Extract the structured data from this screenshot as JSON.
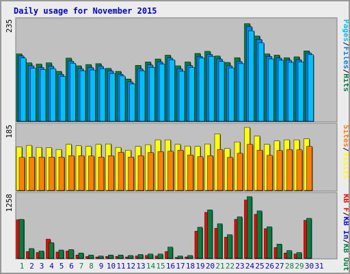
{
  "title": "Daily usage for November 2015",
  "colors": {
    "hits": "#008040",
    "files": "#0080ff",
    "pages": "#00c0ff",
    "visits": "#ffff00",
    "sites": "#ff8000",
    "kb_f": "#ff0000",
    "kb_in": "#0000ff",
    "kb_out": "#008040",
    "panel_bg": "#c0c0c0",
    "weekend_label": "#008040",
    "weekday_label": "#0000cc"
  },
  "chart_data": [
    {
      "type": "bar",
      "name": "pages-files-hits",
      "x": [
        1,
        2,
        3,
        4,
        5,
        6,
        7,
        8,
        9,
        10,
        11,
        12,
        13,
        14,
        15,
        16,
        17,
        18,
        19,
        20,
        21,
        22,
        23,
        24,
        25,
        26,
        27,
        28,
        29,
        30
      ],
      "ymax_label": "235",
      "ylim": [
        0,
        235
      ],
      "axis_legend": [
        "Pages",
        "/",
        "Files",
        "/",
        "Hits"
      ],
      "series": [
        {
          "name": "Hits",
          "values": [
            160,
            139,
            136,
            139,
            119,
            150,
            132,
            135,
            137,
            126,
            119,
            101,
            133,
            141,
            148,
            157,
            132,
            141,
            161,
            166,
            155,
            140,
            151,
            231,
            202,
            160,
            157,
            151,
            153,
            167
          ]
        },
        {
          "name": "Files",
          "values": [
            155,
            132,
            128,
            131,
            112,
            143,
            125,
            128,
            131,
            120,
            112,
            94,
            125,
            134,
            141,
            150,
            125,
            133,
            154,
            159,
            148,
            132,
            142,
            224,
            194,
            154,
            150,
            145,
            146,
            162
          ]
        },
        {
          "name": "Pages",
          "values": [
            150,
            126,
            123,
            125,
            107,
            138,
            120,
            122,
            125,
            114,
            108,
            89,
            120,
            128,
            136,
            146,
            119,
            128,
            150,
            154,
            142,
            127,
            137,
            214,
            186,
            148,
            145,
            140,
            141,
            158
          ]
        }
      ]
    },
    {
      "type": "bar",
      "name": "visits-sites",
      "x": [
        1,
        2,
        3,
        4,
        5,
        6,
        7,
        8,
        9,
        10,
        11,
        12,
        13,
        14,
        15,
        16,
        17,
        18,
        19,
        20,
        21,
        22,
        23,
        24,
        25,
        26,
        27,
        28,
        29,
        30
      ],
      "ymax_label": "185",
      "ylim": [
        0,
        185
      ],
      "axis_legend": [
        "Sites",
        "/",
        "Visits"
      ],
      "series": [
        {
          "name": "Visits",
          "values": [
            128,
            133,
            127,
            126,
            121,
            136,
            132,
            130,
            136,
            137,
            127,
            119,
            130,
            135,
            149,
            149,
            136,
            131,
            130,
            137,
            166,
            124,
            143,
            185,
            160,
            136,
            146,
            149,
            149,
            152
          ]
        },
        {
          "name": "Sites",
          "values": [
            98,
            99,
            99,
            99,
            99,
            103,
            103,
            102,
            99,
            103,
            113,
            99,
            103,
            112,
            115,
            116,
            119,
            105,
            100,
            103,
            121,
            98,
            110,
            136,
            119,
            104,
            118,
            121,
            120,
            130
          ]
        }
      ]
    },
    {
      "type": "bar",
      "name": "kbf-kbin-kbout",
      "x": [
        1,
        2,
        3,
        4,
        5,
        6,
        7,
        8,
        9,
        10,
        11,
        12,
        13,
        14,
        15,
        16,
        17,
        18,
        19,
        20,
        21,
        22,
        23,
        24,
        25,
        26,
        27,
        28,
        29,
        30
      ],
      "ymax_label": "1258",
      "ylim": [
        0,
        1258
      ],
      "axis_legend": [
        "KB F",
        "/",
        "KB In",
        "/",
        "KB Out"
      ],
      "series": [
        {
          "name": "KB F",
          "values": [
            790,
            150,
            130,
            400,
            140,
            160,
            80,
            50,
            40,
            50,
            50,
            40,
            60,
            70,
            60,
            150,
            30,
            40,
            560,
            940,
            620,
            440,
            800,
            1190,
            900,
            610,
            230,
            120,
            100,
            780
          ]
        },
        {
          "name": "KB Out",
          "values": [
            800,
            210,
            160,
            330,
            180,
            190,
            120,
            80,
            60,
            80,
            80,
            70,
            90,
            100,
            100,
            240,
            60,
            70,
            640,
            990,
            710,
            490,
            850,
            1258,
            970,
            650,
            300,
            170,
            130,
            820
          ]
        }
      ]
    }
  ],
  "x_axis": {
    "labels": [
      "1",
      "2",
      "3",
      "4",
      "5",
      "6",
      "7",
      "8",
      "9",
      "10",
      "11",
      "12",
      "13",
      "14",
      "15",
      "16",
      "17",
      "18",
      "19",
      "20",
      "21",
      "22",
      "23",
      "24",
      "25",
      "26",
      "27",
      "28",
      "29",
      "30",
      "31"
    ],
    "weekend_days": [
      1,
      7,
      8,
      14,
      15,
      21,
      22,
      28,
      29
    ]
  }
}
